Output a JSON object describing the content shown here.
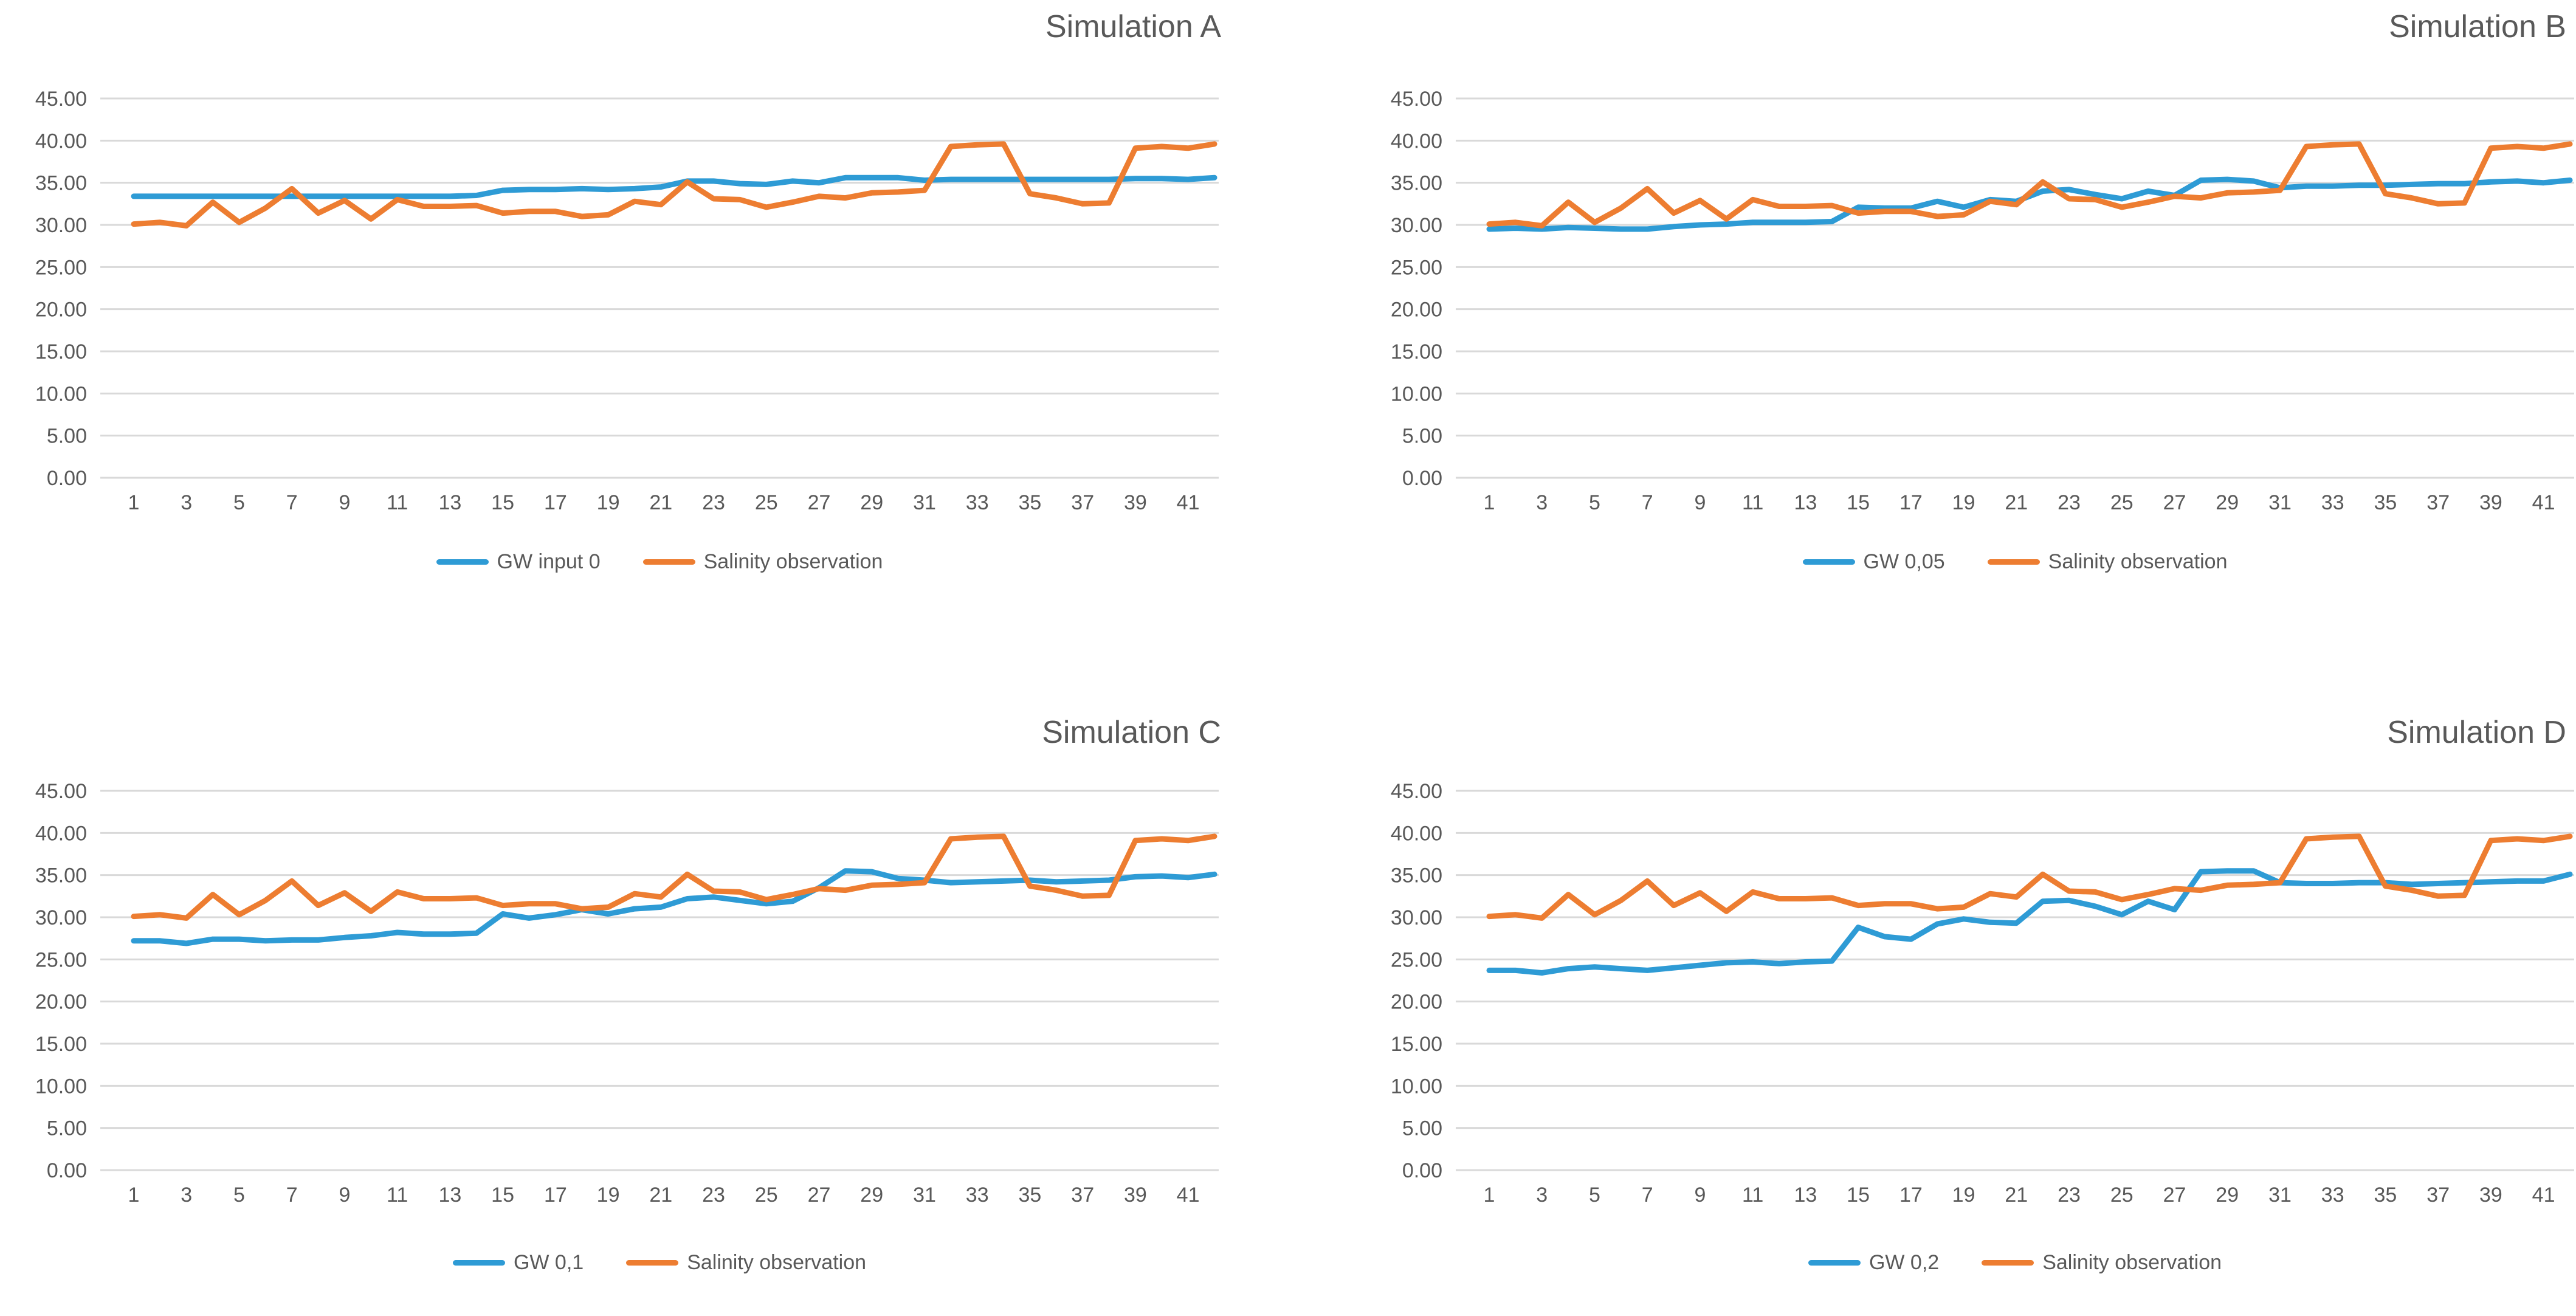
{
  "theme": {
    "background": "#ffffff",
    "gridline_color": "#d9d9d9",
    "text_color": "#595959",
    "blue_series_color": "#2e9bd5",
    "orange_series_color": "#ed7d31"
  },
  "chart_data": [
    {
      "type": "line",
      "title": "Simulation A",
      "ylim": [
        0,
        45
      ],
      "grid": true,
      "legend_position": "bottom",
      "y_ticks": [
        "45.00",
        "40.00",
        "35.00",
        "30.00",
        "25.00",
        "20.00",
        "15.00",
        "10.00",
        "5.00",
        "0.00"
      ],
      "x_ticks": [
        1,
        3,
        5,
        7,
        9,
        11,
        13,
        15,
        17,
        19,
        21,
        23,
        25,
        27,
        29,
        31,
        33,
        35,
        37,
        39,
        41
      ],
      "series": [
        {
          "name": "GW input 0",
          "color": "#2e9bd5",
          "values": [
            33.4,
            33.4,
            33.4,
            33.4,
            33.4,
            33.4,
            33.4,
            33.4,
            33.4,
            33.4,
            33.4,
            33.4,
            33.4,
            33.5,
            34.1,
            34.2,
            34.2,
            34.3,
            34.2,
            34.3,
            34.5,
            35.2,
            35.2,
            34.9,
            34.8,
            35.2,
            35.0,
            35.6,
            35.6,
            35.6,
            35.3,
            35.4,
            35.4,
            35.4,
            35.4,
            35.4,
            35.4,
            35.4,
            35.5,
            35.5,
            35.4,
            35.6
          ]
        },
        {
          "name": "Salinity observation",
          "color": "#ed7d31",
          "values": [
            30.1,
            30.3,
            29.9,
            32.7,
            30.3,
            32.0,
            34.3,
            31.4,
            32.9,
            30.7,
            33.0,
            32.2,
            32.2,
            32.3,
            31.4,
            31.6,
            31.6,
            31.0,
            31.2,
            32.8,
            32.4,
            35.1,
            33.1,
            33.0,
            32.1,
            32.7,
            33.4,
            33.2,
            33.8,
            33.9,
            34.1,
            39.3,
            39.5,
            39.6,
            33.7,
            33.2,
            32.5,
            32.6,
            39.1,
            39.3,
            39.1,
            39.6
          ]
        }
      ]
    },
    {
      "type": "line",
      "title": "Simulation B",
      "ylim": [
        0,
        45
      ],
      "grid": true,
      "legend_position": "bottom",
      "y_ticks": [
        "45.00",
        "40.00",
        "35.00",
        "30.00",
        "25.00",
        "20.00",
        "15.00",
        "10.00",
        "5.00",
        "0.00"
      ],
      "x_ticks": [
        1,
        3,
        5,
        7,
        9,
        11,
        13,
        15,
        17,
        19,
        21,
        23,
        25,
        27,
        29,
        31,
        33,
        35,
        37,
        39,
        41
      ],
      "series": [
        {
          "name": "GW 0,05",
          "color": "#2e9bd5",
          "values": [
            29.5,
            29.6,
            29.5,
            29.7,
            29.6,
            29.5,
            29.5,
            29.8,
            30.0,
            30.1,
            30.3,
            30.3,
            30.3,
            30.4,
            32.1,
            32.0,
            32.0,
            32.8,
            32.1,
            33.0,
            32.8,
            34.0,
            34.2,
            33.6,
            33.1,
            34.0,
            33.5,
            35.3,
            35.4,
            35.2,
            34.4,
            34.6,
            34.6,
            34.7,
            34.7,
            34.8,
            34.9,
            34.9,
            35.1,
            35.2,
            35.0,
            35.3
          ]
        },
        {
          "name": "Salinity observation",
          "color": "#ed7d31",
          "values": [
            30.1,
            30.3,
            29.9,
            32.7,
            30.3,
            32.0,
            34.3,
            31.4,
            32.9,
            30.7,
            33.0,
            32.2,
            32.2,
            32.3,
            31.4,
            31.6,
            31.6,
            31.0,
            31.2,
            32.8,
            32.4,
            35.1,
            33.1,
            33.0,
            32.1,
            32.7,
            33.4,
            33.2,
            33.8,
            33.9,
            34.1,
            39.3,
            39.5,
            39.6,
            33.7,
            33.2,
            32.5,
            32.6,
            39.1,
            39.3,
            39.1,
            39.6
          ]
        }
      ]
    },
    {
      "type": "line",
      "title": "Simulation C",
      "ylim": [
        0,
        45
      ],
      "grid": true,
      "legend_position": "bottom",
      "y_ticks": [
        "45.00",
        "40.00",
        "35.00",
        "30.00",
        "25.00",
        "20.00",
        "15.00",
        "10.00",
        "5.00",
        "0.00"
      ],
      "x_ticks": [
        1,
        3,
        5,
        7,
        9,
        11,
        13,
        15,
        17,
        19,
        21,
        23,
        25,
        27,
        29,
        31,
        33,
        35,
        37,
        39,
        41
      ],
      "series": [
        {
          "name": "GW 0,1",
          "color": "#2e9bd5",
          "values": [
            27.2,
            27.2,
            26.9,
            27.4,
            27.4,
            27.2,
            27.3,
            27.3,
            27.6,
            27.8,
            28.2,
            28.0,
            28.0,
            28.1,
            30.4,
            29.9,
            30.3,
            30.9,
            30.4,
            31.0,
            31.2,
            32.2,
            32.4,
            32.0,
            31.6,
            31.9,
            33.5,
            35.5,
            35.4,
            34.6,
            34.4,
            34.1,
            34.2,
            34.3,
            34.4,
            34.2,
            34.3,
            34.4,
            34.8,
            34.9,
            34.7,
            35.1
          ]
        },
        {
          "name": "Salinity observation",
          "color": "#ed7d31",
          "values": [
            30.1,
            30.3,
            29.9,
            32.7,
            30.3,
            32.0,
            34.3,
            31.4,
            32.9,
            30.7,
            33.0,
            32.2,
            32.2,
            32.3,
            31.4,
            31.6,
            31.6,
            31.0,
            31.2,
            32.8,
            32.4,
            35.1,
            33.1,
            33.0,
            32.1,
            32.7,
            33.4,
            33.2,
            33.8,
            33.9,
            34.1,
            39.3,
            39.5,
            39.6,
            33.7,
            33.2,
            32.5,
            32.6,
            39.1,
            39.3,
            39.1,
            39.6
          ]
        }
      ]
    },
    {
      "type": "line",
      "title": "Simulation D",
      "ylim": [
        0,
        45
      ],
      "grid": true,
      "legend_position": "bottom",
      "y_ticks": [
        "45.00",
        "40.00",
        "35.00",
        "30.00",
        "25.00",
        "20.00",
        "15.00",
        "10.00",
        "5.00",
        "0.00"
      ],
      "x_ticks": [
        1,
        3,
        5,
        7,
        9,
        11,
        13,
        15,
        17,
        19,
        21,
        23,
        25,
        27,
        29,
        31,
        33,
        35,
        37,
        39,
        41
      ],
      "series": [
        {
          "name": "GW 0,2",
          "color": "#2e9bd5",
          "values": [
            23.7,
            23.7,
            23.4,
            23.9,
            24.1,
            23.9,
            23.7,
            24.0,
            24.3,
            24.6,
            24.7,
            24.5,
            24.7,
            24.8,
            28.8,
            27.7,
            27.4,
            29.2,
            29.8,
            29.4,
            29.3,
            31.9,
            32.0,
            31.3,
            30.3,
            31.9,
            30.9,
            35.4,
            35.5,
            35.5,
            34.1,
            34.0,
            34.0,
            34.1,
            34.1,
            33.9,
            34.0,
            34.1,
            34.2,
            34.3,
            34.3,
            35.1
          ]
        },
        {
          "name": "Salinity observation",
          "color": "#ed7d31",
          "values": [
            30.1,
            30.3,
            29.9,
            32.7,
            30.3,
            32.0,
            34.3,
            31.4,
            32.9,
            30.7,
            33.0,
            32.2,
            32.2,
            32.3,
            31.4,
            31.6,
            31.6,
            31.0,
            31.2,
            32.8,
            32.4,
            35.1,
            33.1,
            33.0,
            32.1,
            32.7,
            33.4,
            33.2,
            33.8,
            33.9,
            34.1,
            39.3,
            39.5,
            39.6,
            33.7,
            33.2,
            32.5,
            32.6,
            39.1,
            39.3,
            39.1,
            39.6
          ]
        }
      ]
    }
  ]
}
